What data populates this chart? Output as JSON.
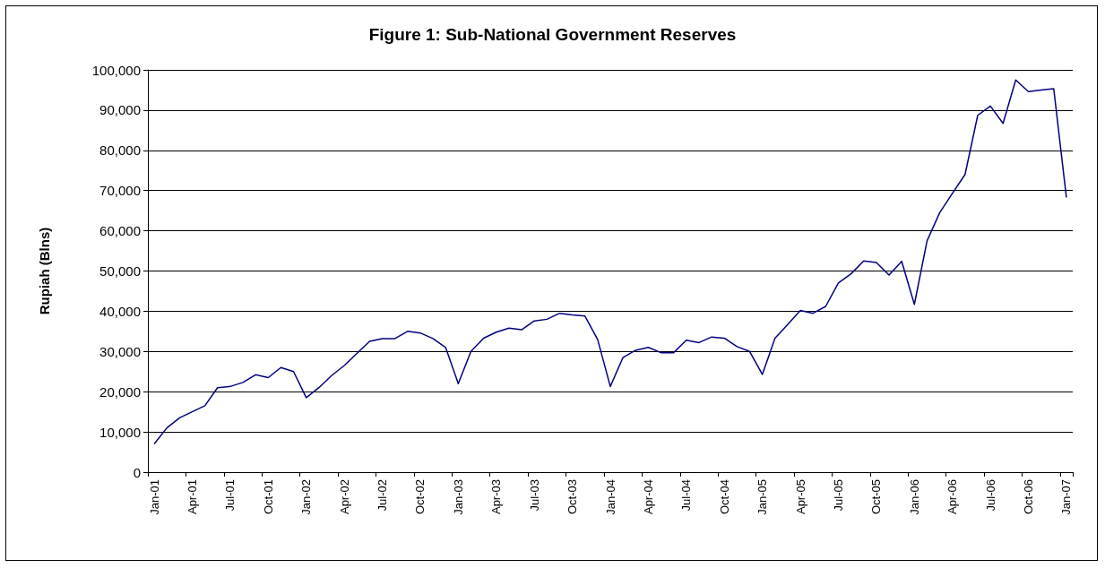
{
  "chart_data": {
    "type": "line",
    "title": "Figure 1: Sub-National Government Reserves",
    "ylabel": "Rupiah (Blns)",
    "categories": [
      "Jan-01",
      null,
      null,
      "Apr-01",
      null,
      null,
      "Jul-01",
      null,
      null,
      "Oct-01",
      null,
      null,
      "Jan-02",
      null,
      null,
      "Apr-02",
      null,
      null,
      "Jul-02",
      null,
      null,
      "Oct-02",
      null,
      null,
      "Jan-03",
      null,
      null,
      "Apr-03",
      null,
      null,
      "Jul-03",
      null,
      null,
      "Oct-03",
      null,
      null,
      "Jan-04",
      null,
      null,
      "Apr-04",
      null,
      null,
      "Jul-04",
      null,
      null,
      "Oct-04",
      null,
      null,
      "Jan-05",
      null,
      null,
      "Apr-05",
      null,
      null,
      "Jul-05",
      null,
      null,
      "Oct-05",
      null,
      null,
      "Jan-06",
      null,
      null,
      "Apr-06",
      null,
      null,
      "Jul-06",
      null,
      null,
      "Oct-06",
      null,
      null,
      "Jan-07"
    ],
    "series": [
      {
        "color": "#000080",
        "values": [
          7000,
          11000,
          13500,
          15000,
          16500,
          21000,
          21300,
          22300,
          24200,
          23500,
          26000,
          25000,
          18500,
          21000,
          24000,
          26500,
          29500,
          32500,
          33200,
          33200,
          35000,
          34600,
          33200,
          31000,
          22000,
          30000,
          33300,
          34800,
          35800,
          35400,
          37600,
          38000,
          39500,
          39100,
          38800,
          33000,
          21300,
          28500,
          30300,
          31000,
          29700,
          29700,
          32800,
          32200,
          33600,
          33300,
          31200,
          30000,
          24300,
          33300,
          36700,
          40200,
          39500,
          41200,
          47000,
          49300,
          52500,
          52100,
          49000,
          52400,
          41700,
          57500,
          64500,
          69300,
          74000,
          88700,
          91000,
          86700,
          97500,
          94600,
          95000,
          95300,
          68300
        ]
      }
    ],
    "ylim": [
      0,
      100000
    ],
    "yticks": [
      0,
      {
        "value": 10000,
        "label": "10,000"
      },
      {
        "value": 20000,
        "label": "20,000"
      },
      {
        "value": 30000,
        "label": "30,000"
      },
      {
        "value": 40000,
        "label": "40,000"
      },
      {
        "value": 50000,
        "label": "50,000"
      },
      {
        "value": 60000,
        "label": "60,000"
      },
      {
        "value": 70000,
        "label": "70,000"
      },
      {
        "value": 80000,
        "label": "80,000"
      },
      {
        "value": 90000,
        "label": "90,000"
      },
      {
        "value": 100000,
        "label": "100,000"
      }
    ],
    "grid": "y",
    "marker": "none",
    "line_style": "solid"
  }
}
